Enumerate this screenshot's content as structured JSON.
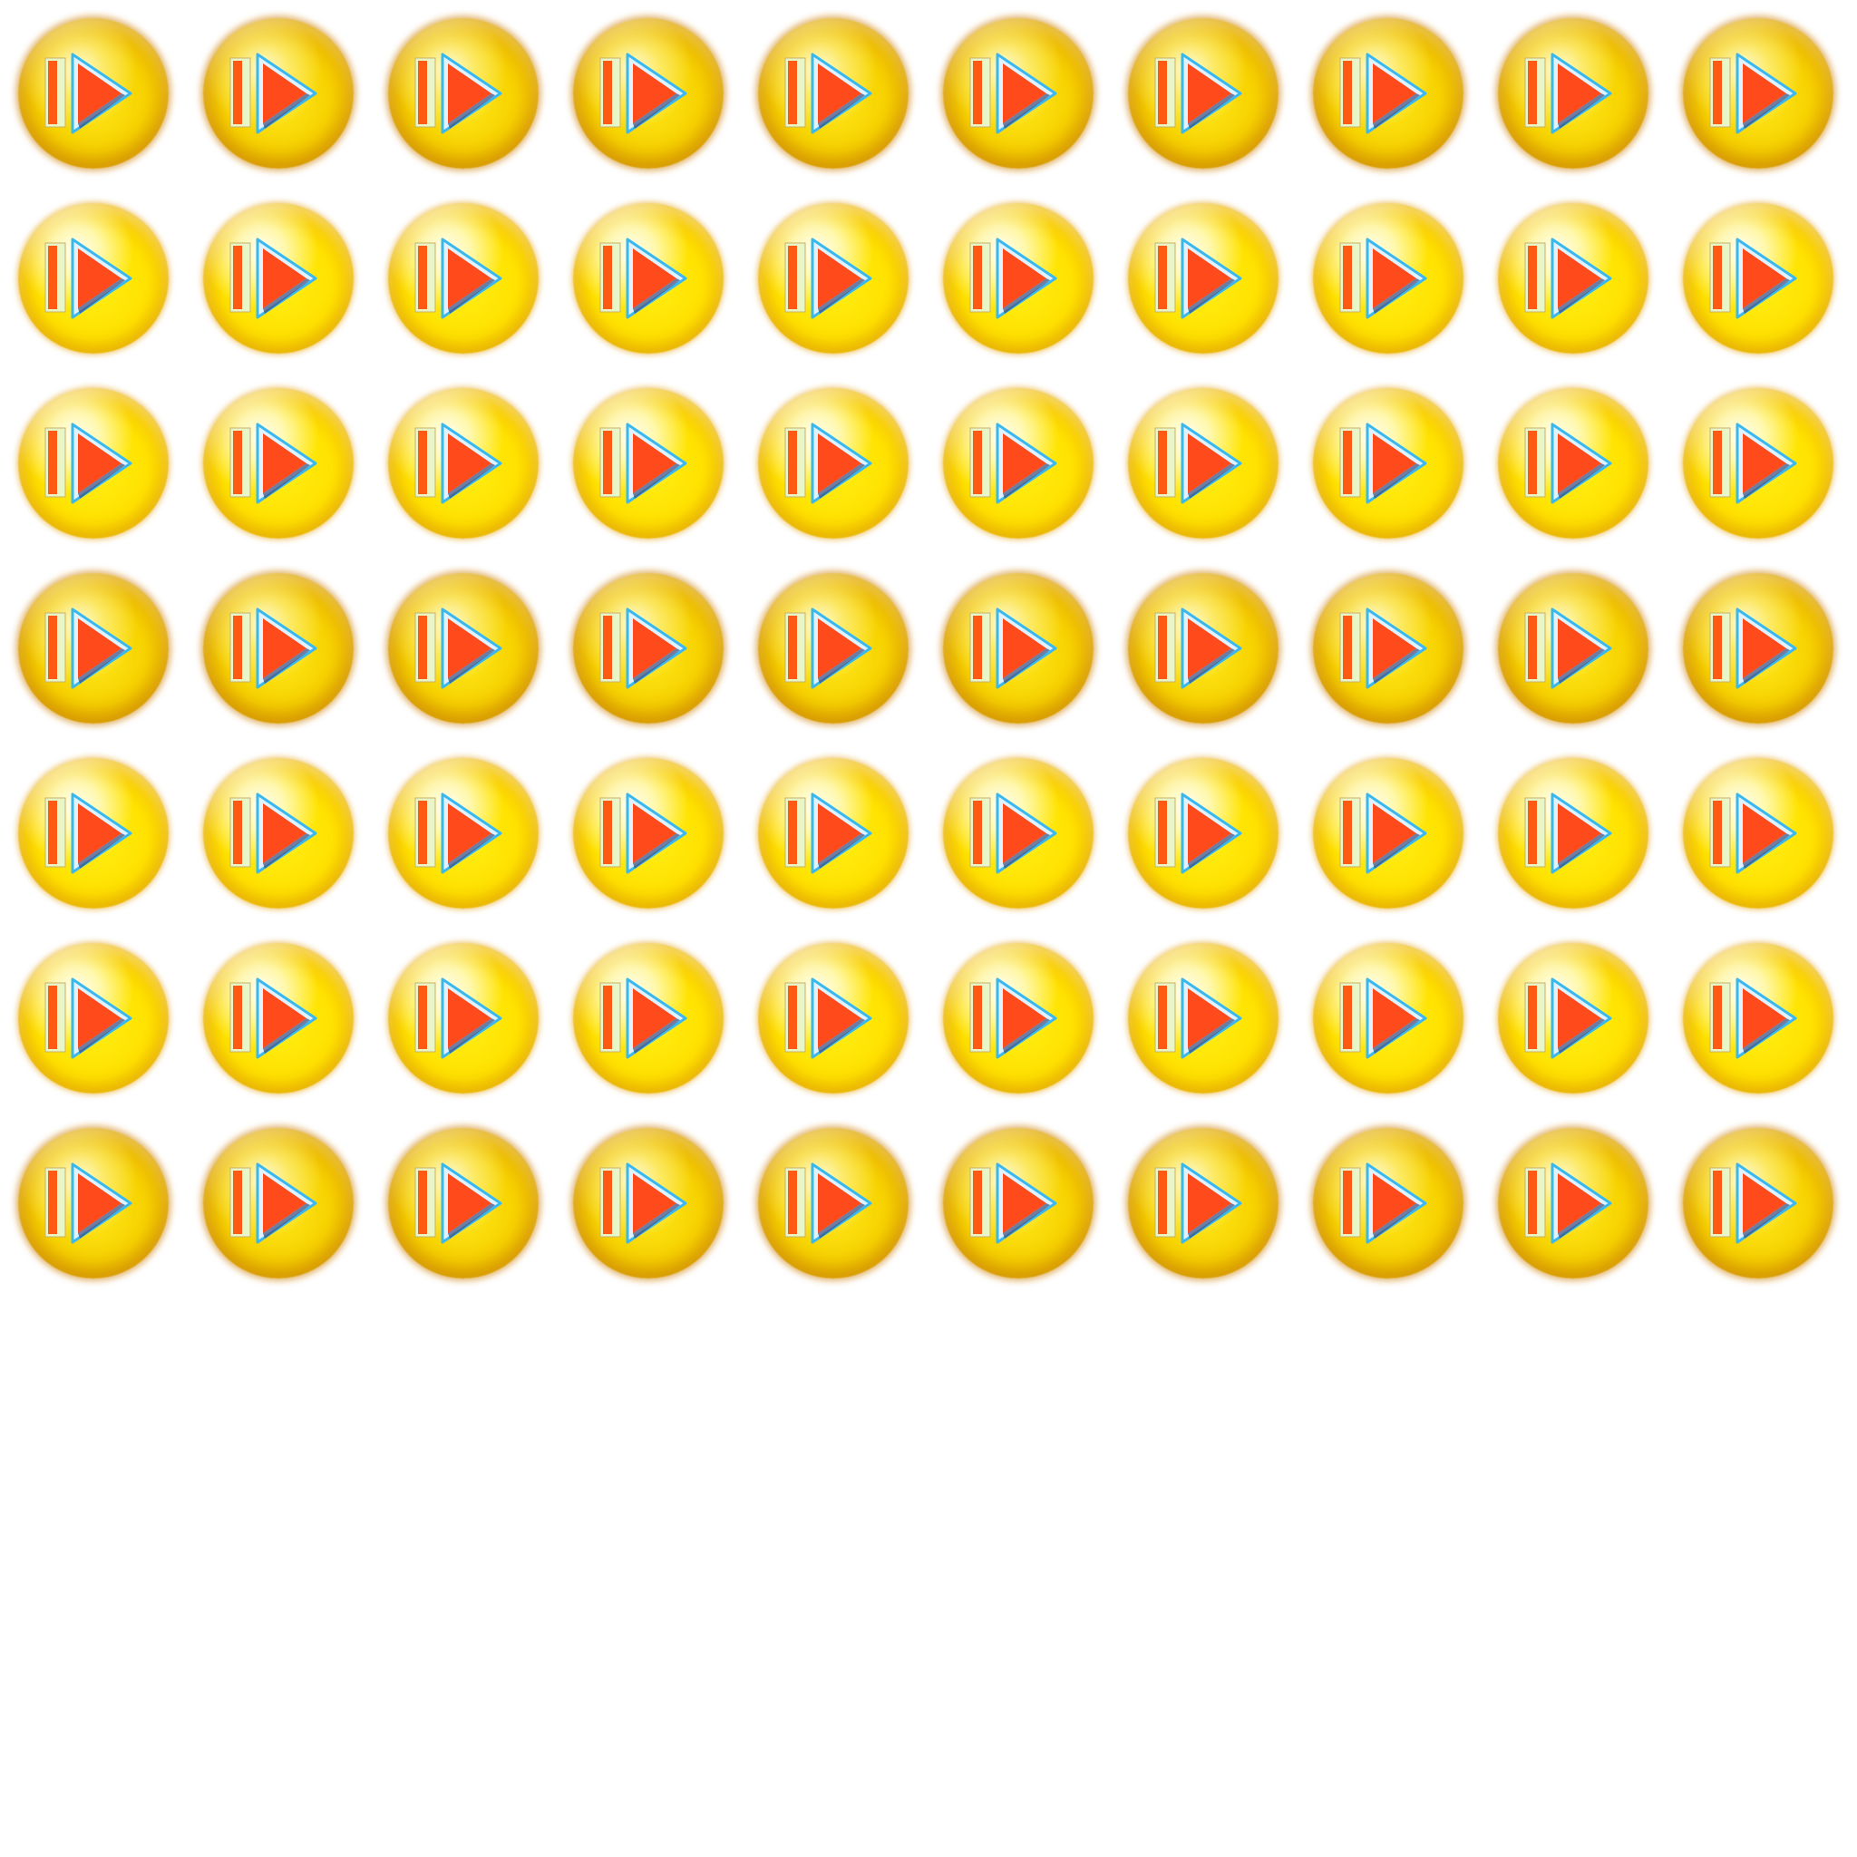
{
  "sheet": {
    "rows": 7,
    "columns": 10,
    "icon_name": "play-next-icon",
    "colors": {
      "background": "#ffffff",
      "orb_core": "#ffe200",
      "orb_edge": "#c98a10",
      "triangle": "#ff4a1c",
      "triangle_edge": "#39b8f0",
      "bar": "#ff5a14",
      "bar_edge": "#e9f7c8"
    },
    "dark_rim_rows": [
      0,
      3,
      6
    ]
  }
}
